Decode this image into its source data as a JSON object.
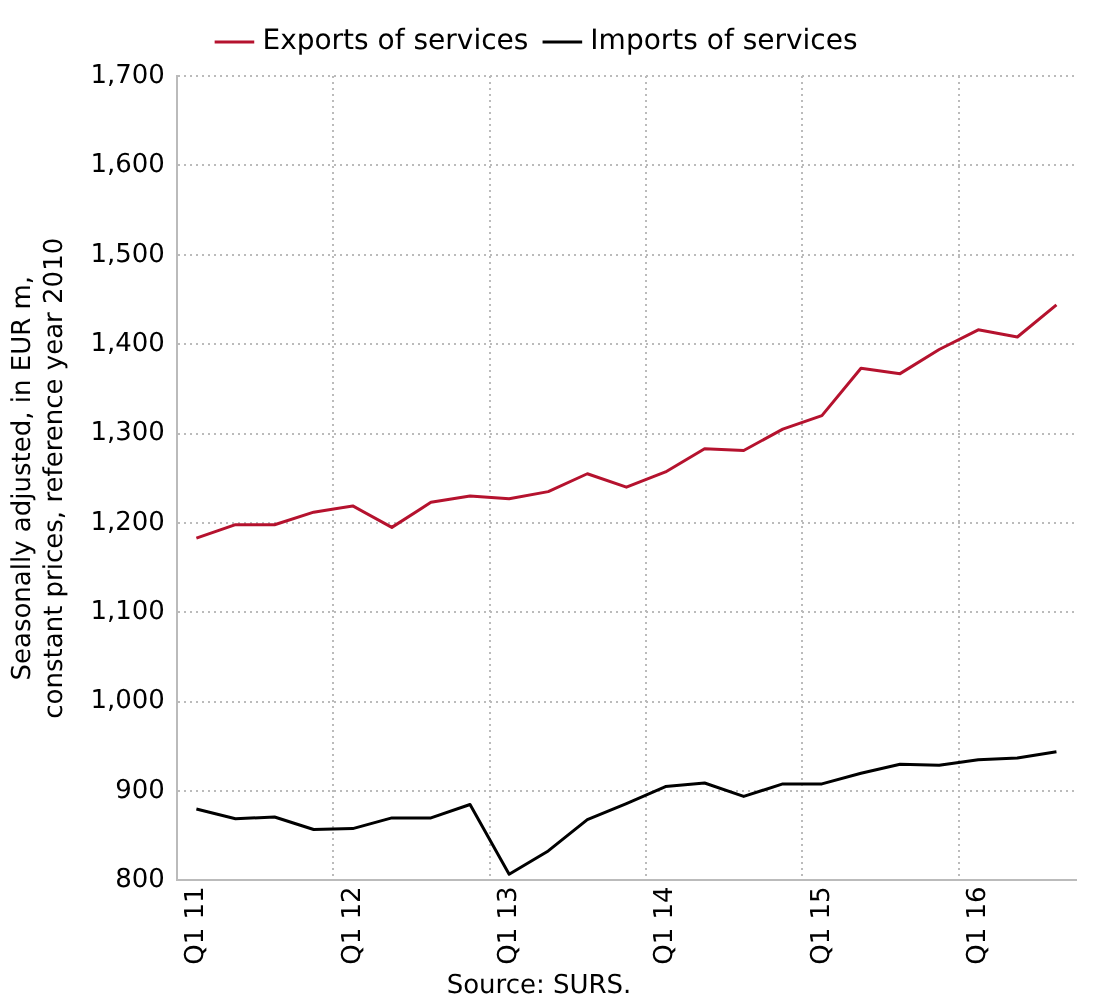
{
  "chart_data": {
    "type": "line",
    "ylabel": "Seasonally adjusted, in EUR m, constant prices, reference year 2010",
    "annotations": [
      "Source: SURS."
    ],
    "categories": [
      "Q1 11",
      null,
      null,
      null,
      "Q1 12",
      null,
      null,
      null,
      "Q1 13",
      null,
      null,
      null,
      "Q1 14",
      null,
      null,
      null,
      "Q1 15",
      null,
      null,
      null,
      "Q1 16",
      null,
      null
    ],
    "series": [
      {
        "name": "Exports of services",
        "color": "#b5122e",
        "values": [
          1183,
          1198,
          1198,
          1212,
          1219,
          1195,
          1223,
          1230,
          1227,
          1235,
          1255,
          1240,
          1257,
          1283,
          1281,
          1305,
          1320,
          1373,
          1367,
          1394,
          1416,
          1408,
          1444
        ]
      },
      {
        "name": "Imports of services",
        "color": "#000000",
        "values": [
          880,
          869,
          871,
          857,
          858,
          870,
          870,
          885,
          807,
          833,
          868,
          886,
          905,
          909,
          894,
          908,
          908,
          920,
          930,
          929,
          935,
          937,
          944
        ]
      }
    ],
    "ylim": [
      800,
      1700
    ],
    "yticks": [
      800,
      900,
      {
        "value": 1000,
        "label": "1,000"
      },
      {
        "value": 1100,
        "label": "1,100"
      },
      {
        "value": 1200,
        "label": "1,200"
      },
      {
        "value": 1300,
        "label": "1,300"
      },
      {
        "value": 1400,
        "label": "1,400"
      },
      {
        "value": 1500,
        "label": "1,500"
      },
      {
        "value": 1600,
        "label": "1,600"
      },
      {
        "value": 1700,
        "label": "1,700"
      }
    ],
    "grid": true,
    "legend": "top",
    "marker": "none",
    "line_style": "solid"
  }
}
